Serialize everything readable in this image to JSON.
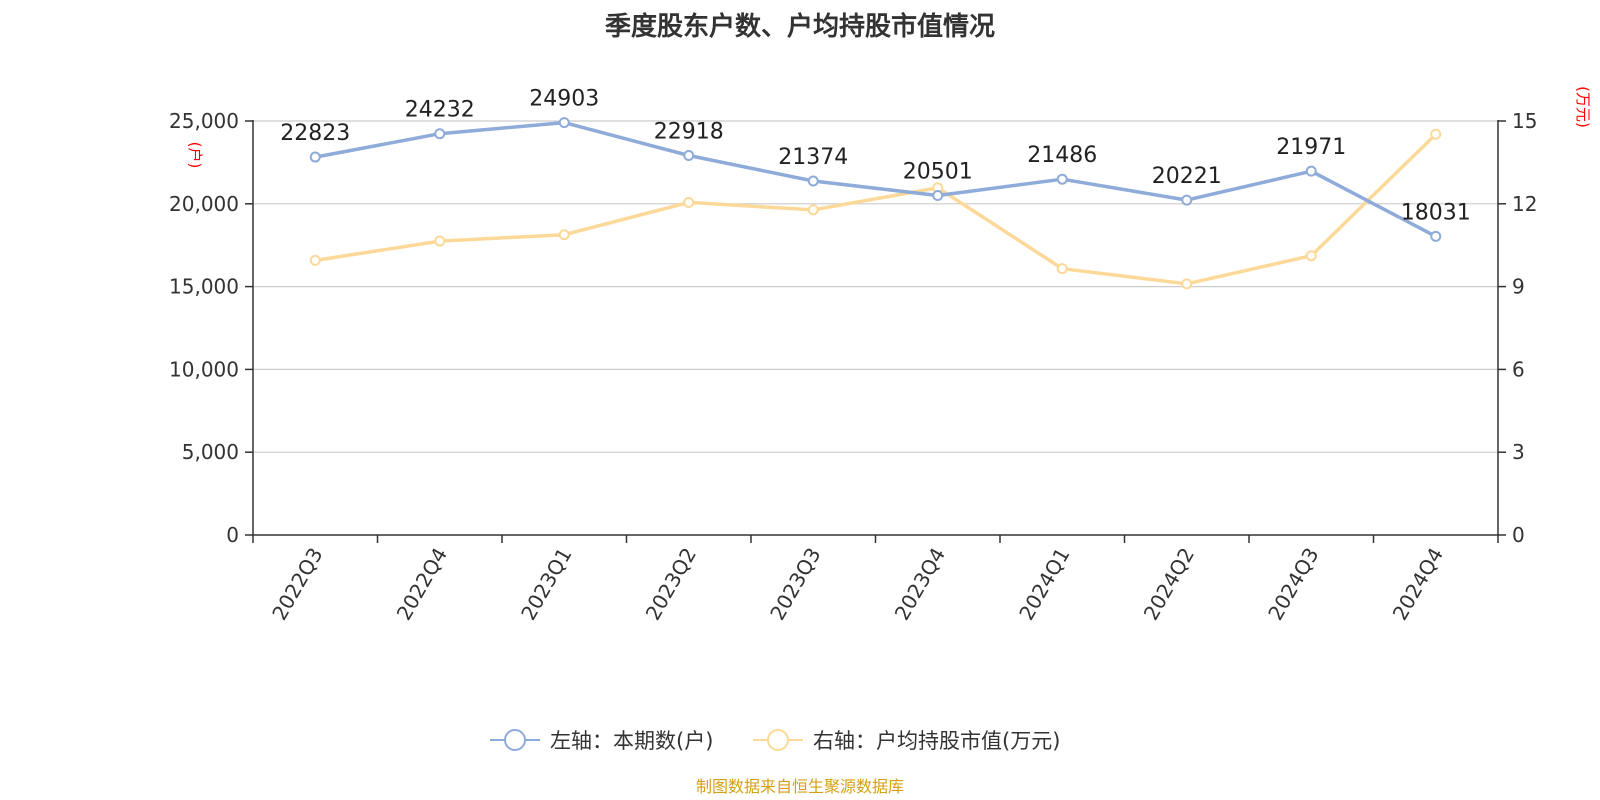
{
  "chart_data": {
    "type": "line",
    "title": "季度股东户数、户均持股市值情况",
    "categories": [
      "2022Q3",
      "2022Q4",
      "2023Q1",
      "2023Q2",
      "2023Q3",
      "2023Q4",
      "2024Q1",
      "2024Q2",
      "2024Q3",
      "2024Q4"
    ],
    "y_left": {
      "label": "(户)",
      "range": [
        0,
        25000
      ],
      "ticks": [
        "0",
        "5,000",
        "10,000",
        "15,000",
        "20,000",
        "25,000"
      ],
      "tick_values": [
        0,
        5000,
        10000,
        15000,
        20000,
        25000
      ]
    },
    "y_right": {
      "label": "(万元)",
      "range": [
        0,
        15
      ],
      "ticks": [
        "0",
        "3",
        "6",
        "9",
        "12",
        "15"
      ],
      "tick_values": [
        0,
        3,
        6,
        9,
        12,
        15
      ]
    },
    "series": [
      {
        "name": "左轴：本期数(户)",
        "axis": "left",
        "color": "#8eabd9",
        "values": [
          22823,
          24232,
          24903,
          22918,
          21374,
          20501,
          21486,
          20221,
          21971,
          18031
        ],
        "labels": [
          "22823",
          "24232",
          "24903",
          "22918",
          "21374",
          "20501",
          "21486",
          "20221",
          "21971",
          "18031"
        ]
      },
      {
        "name": "右轴：户均持股市值(万元)",
        "axis": "right",
        "color": "#fcd998",
        "values": [
          9.95,
          10.65,
          10.88,
          12.05,
          11.78,
          12.58,
          9.65,
          9.1,
          10.12,
          14.52
        ]
      }
    ],
    "grid": true,
    "legend": "bottom-center",
    "unit_color": "#ff0000"
  },
  "source": "制图数据来自恒生聚源数据库",
  "source_color": "#d4a017"
}
